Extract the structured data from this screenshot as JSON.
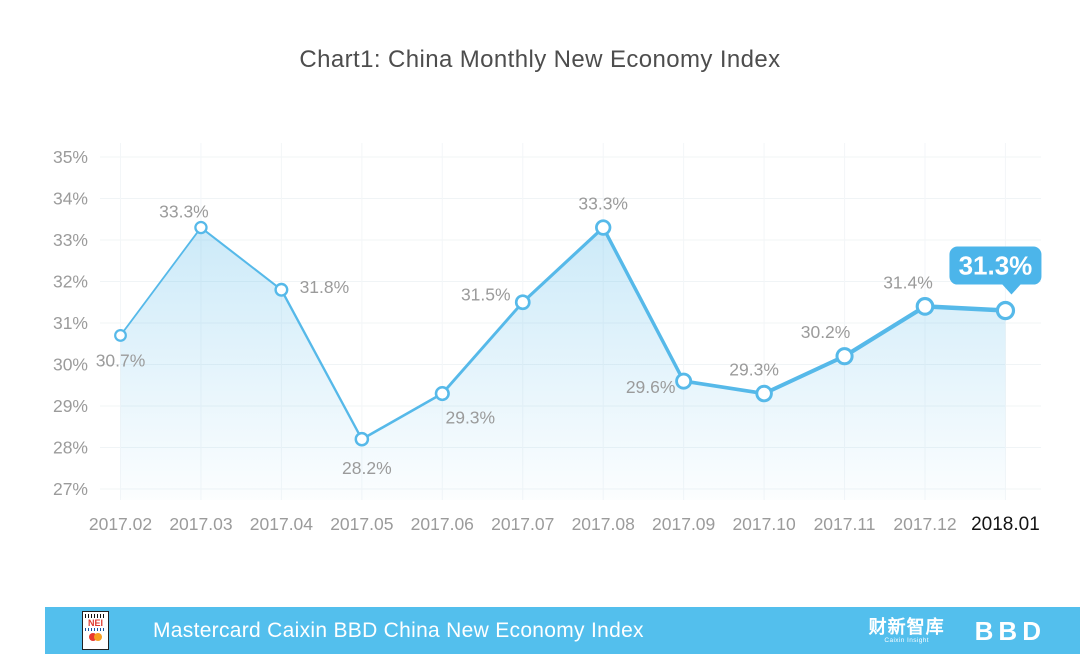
{
  "title": "Chart1: China Monthly New Economy Index",
  "chart_data": {
    "type": "line",
    "title": "Chart1: China Monthly New Economy Index",
    "categories": [
      "2017.02",
      "2017.03",
      "2017.04",
      "2017.05",
      "2017.06",
      "2017.07",
      "2017.08",
      "2017.09",
      "2017.10",
      "2017.11",
      "2017.12",
      "2018.01"
    ],
    "values": [
      30.7,
      33.3,
      31.8,
      28.2,
      29.3,
      31.5,
      33.3,
      29.6,
      29.3,
      30.2,
      31.4,
      31.3
    ],
    "unit": "%",
    "ylim": [
      27,
      35
    ],
    "y_tick_step": 1,
    "y_tick_labels": [
      "27%",
      "28%",
      "29%",
      "30%",
      "31%",
      "32%",
      "33%",
      "34%",
      "35%"
    ],
    "grid": true,
    "legend": "none",
    "highlight_index": 11,
    "highlight_label": "31.3%",
    "line_color": "#56b9e9",
    "badge_color": "#4cb5ea",
    "area_top_color": "rgba(86,185,233,0.30)",
    "area_bottom_color": "rgba(86,185,233,0.02)",
    "label_color": "#9b9b9b",
    "last_tick_color": "#141414"
  },
  "footer": {
    "banner_text": "Mastercard Caixin BBD China New Economy Index",
    "nei_logo_text": "NEI",
    "caixin_logo_cn": "财新智库",
    "caixin_logo_en": "Caixin Insight",
    "bbd_logo_text": "BBD",
    "bar_color": "#53bfed"
  },
  "colors": {
    "accent_blue": "#56b9e9",
    "title_gray": "#4d4d4d",
    "axis_gray": "#9b9b9b"
  }
}
